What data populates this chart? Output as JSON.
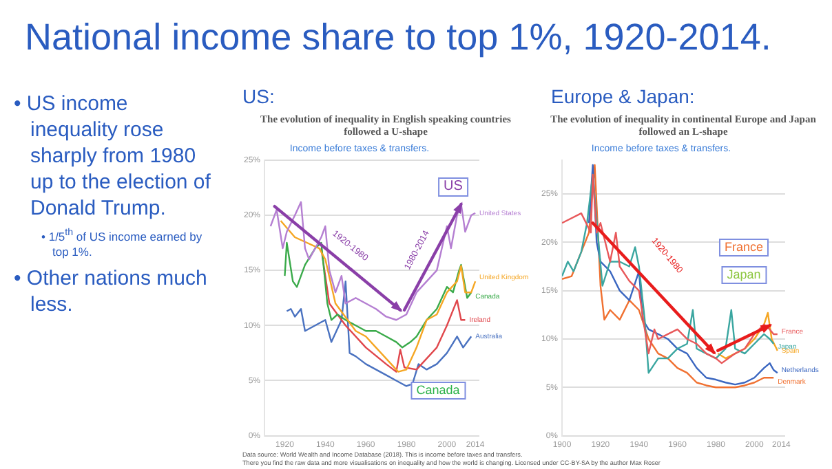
{
  "chart_data": [
    {
      "type": "line",
      "title": "The evolution of inequality in English speaking countries followed a U-shape",
      "subtitle": "Income before taxes & transfers.",
      "xlim": [
        1910,
        2016
      ],
      "xticks": [
        1920,
        1940,
        1960,
        1980,
        2000,
        2014
      ],
      "ylim": [
        0,
        25
      ],
      "yticks": [
        {
          "value": 0,
          "label": "0%"
        },
        {
          "value": 5,
          "label": "5%"
        },
        {
          "value": 10,
          "label": "10%"
        },
        {
          "value": 15,
          "label": "15%"
        },
        {
          "value": 20,
          "label": "20%"
        },
        {
          "value": 25,
          "label": "25%"
        }
      ],
      "grid": "y",
      "legend": false,
      "marker": "none",
      "line_style": "solid",
      "series": [
        {
          "name": "United States",
          "color": "#b57fd2",
          "x": [
            1913,
            1916,
            1919,
            1921,
            1925,
            1928,
            1930,
            1932,
            1935,
            1938,
            1940,
            1942,
            1945,
            1948,
            1950,
            1955,
            1960,
            1965,
            1970,
            1975,
            1980,
            1985,
            1990,
            1995,
            2000,
            2002,
            2005,
            2007,
            2009,
            2012,
            2014
          ],
          "values": [
            19,
            20.5,
            17,
            18.5,
            20,
            21.2,
            17,
            16,
            17,
            18,
            19,
            15,
            13,
            14.5,
            12,
            12.5,
            12,
            11.5,
            10.8,
            10.5,
            11,
            13,
            14,
            15,
            19,
            17,
            20,
            21,
            18.5,
            20,
            20.2
          ]
        },
        {
          "name": "United Kingdom",
          "color": "#f5a623",
          "x": [
            1918,
            1925,
            1937,
            1940,
            1945,
            1949,
            1955,
            1960,
            1965,
            1970,
            1976,
            1980,
            1985,
            1990,
            1995,
            2000,
            2005,
            2007,
            2009,
            2010,
            2012,
            2014
          ],
          "values": [
            19.5,
            18,
            17,
            16,
            12,
            11,
            9.5,
            9,
            8,
            7,
            5.8,
            6,
            8,
            10.5,
            11,
            13,
            14,
            15.4,
            13,
            13,
            13,
            14
          ]
        },
        {
          "name": "Canada",
          "color": "#3aaa4a",
          "x": [
            1920,
            1921,
            1924,
            1926,
            1930,
            1935,
            1938,
            1941,
            1943,
            1946,
            1950,
            1955,
            1960,
            1965,
            1970,
            1975,
            1978,
            1982,
            1985,
            1990,
            1995,
            2000,
            2003,
            2006,
            2007,
            2010,
            2012
          ],
          "values": [
            14.5,
            17.5,
            14,
            13.5,
            15.5,
            17,
            17.5,
            12,
            10.5,
            11,
            10.5,
            10,
            9.5,
            9.5,
            9,
            8.5,
            8,
            8.5,
            9,
            10.5,
            11.5,
            13.5,
            13,
            15,
            15.5,
            12.5,
            13
          ]
        },
        {
          "name": "Ireland",
          "color": "#e0474c",
          "x": [
            1938,
            1942,
            1950,
            1960,
            1970,
            1975,
            1977,
            1979,
            1985,
            1990,
            1995,
            2000,
            2005,
            2007,
            2009
          ],
          "values": [
            17,
            12,
            10,
            8,
            6.5,
            5.8,
            7.8,
            6.2,
            6,
            7,
            8,
            10,
            12.3,
            10.5,
            10.5
          ]
        },
        {
          "name": "Australia",
          "color": "#4a72c0",
          "x": [
            1921,
            1923,
            1925,
            1928,
            1930,
            1935,
            1940,
            1943,
            1948,
            1950,
            1952,
            1955,
            1960,
            1965,
            1970,
            1975,
            1980,
            1983,
            1986,
            1990,
            1995,
            2000,
            2005,
            2008,
            2010,
            2012
          ],
          "values": [
            11.3,
            11.5,
            10.8,
            11.5,
            9.5,
            10,
            10.5,
            8.5,
            10.5,
            14,
            7.5,
            7.2,
            6.5,
            6,
            5.5,
            5,
            4.5,
            4.7,
            6.5,
            6,
            6.5,
            7.5,
            9,
            8,
            8.5,
            9
          ]
        }
      ],
      "annotations": [
        "National income share to top 1%, 1920-2014.",
        "• US income inequality rose sharply from 1980 up to the election of Donald Trump.",
        "• 1/5$^{th}$ of US income earned by top 1%.",
        "• Other nations much less.",
        "US:",
        "1920-1980",
        "1980-2014",
        "US",
        "Canada"
      ]
    },
    {
      "type": "line",
      "title": "The evolution of inequality in continental Europe and Japan followed an L-shape",
      "subtitle": "Income before taxes & transfers.",
      "xlim": [
        1900,
        2016
      ],
      "xticks": [
        1900,
        1920,
        1940,
        1960,
        1980,
        2000,
        2014
      ],
      "ylim": [
        0,
        28.5
      ],
      "yticks": [
        {
          "value": 0,
          "label": "0%"
        },
        {
          "value": 5,
          "label": "5%"
        },
        {
          "value": 10,
          "label": "10%"
        },
        {
          "value": 15,
          "label": "15%"
        },
        {
          "value": 20,
          "label": "20%"
        },
        {
          "value": 25,
          "label": "25%"
        }
      ],
      "grid": "y",
      "legend": false,
      "marker": "none",
      "line_style": "solid",
      "series": [
        {
          "name": "France",
          "color": "#e8585a",
          "x": [
            1900,
            1910,
            1915,
            1916,
            1918,
            1920,
            1925,
            1928,
            1930,
            1935,
            1940,
            1943,
            1945,
            1948,
            1950,
            1955,
            1960,
            1965,
            1970,
            1975,
            1980,
            1983,
            1990,
            1995,
            2000,
            2005,
            2008,
            2010,
            2012
          ],
          "values": [
            22,
            23,
            21,
            27,
            21,
            22,
            18,
            21,
            17.5,
            16,
            15,
            11,
            8.5,
            11,
            10,
            10.5,
            11,
            10,
            9.5,
            8.5,
            8,
            7.5,
            8.5,
            9,
            10.5,
            11.5,
            11,
            10.5,
            10.5
          ]
        },
        {
          "name": "Japan",
          "color": "#3aa6a0",
          "x": [
            1900,
            1903,
            1906,
            1910,
            1913,
            1916,
            1919,
            1921,
            1925,
            1930,
            1935,
            1938,
            1940,
            1943,
            1945,
            1950,
            1955,
            1960,
            1965,
            1968,
            1970,
            1975,
            1980,
            1985,
            1988,
            1990,
            1995,
            2000,
            2005,
            2008,
            2010
          ],
          "values": [
            16.5,
            18,
            17,
            19,
            22,
            27,
            20,
            15.5,
            18,
            18,
            17.5,
            19.5,
            17.5,
            12,
            6.5,
            8,
            8,
            9,
            9.5,
            13,
            9,
            8.5,
            8,
            9,
            13,
            9,
            8.5,
            9.5,
            10.5,
            10,
            9.5
          ]
        },
        {
          "name": "Spain",
          "color": "#f5a623",
          "x": [
            1981,
            1985,
            1990,
            1995,
            2000,
            2005,
            2007,
            2009,
            2012
          ],
          "values": [
            8.5,
            8,
            8.5,
            9,
            10,
            11.5,
            12.7,
            10,
            8.8
          ]
        },
        {
          "name": "Netherlands",
          "color": "#3a66c0",
          "x": [
            1914,
            1916,
            1918,
            1920,
            1925,
            1930,
            1935,
            1940,
            1942,
            1945,
            1950,
            1955,
            1960,
            1965,
            1970,
            1975,
            1980,
            1985,
            1990,
            1995,
            2000,
            2005,
            2008,
            2010,
            2012
          ],
          "values": [
            22,
            28,
            20,
            18,
            17,
            15,
            14,
            17,
            12,
            11,
            10.5,
            10,
            9,
            8.5,
            7,
            6,
            5.8,
            5.5,
            5.3,
            5.5,
            6,
            7,
            7.5,
            6.8,
            6.5
          ]
        },
        {
          "name": "Denmark",
          "color": "#f07030",
          "x": [
            1900,
            1905,
            1910,
            1914,
            1917,
            1920,
            1922,
            1925,
            1930,
            1935,
            1940,
            1945,
            1950,
            1955,
            1960,
            1965,
            1970,
            1975,
            1980,
            1990,
            1995,
            2000,
            2005,
            2010
          ],
          "values": [
            16.2,
            16.5,
            19,
            21,
            28,
            15.5,
            12,
            13,
            12,
            14,
            13,
            10,
            8.5,
            8,
            7,
            6.5,
            5.5,
            5.2,
            5,
            5,
            5.2,
            5.5,
            6,
            6
          ]
        }
      ],
      "annotations": [
        "Europe & Japan:",
        "Data source: World Wealth and Income Database (2018). This is income before taxes and transfers.",
        "There you find the raw data and more visualisations on inequality and how the world is changing. Licensed under CC-BY-SA by the author Max Roser",
        "1920-1980",
        "France",
        "Japan"
      ]
    }
  ]
}
